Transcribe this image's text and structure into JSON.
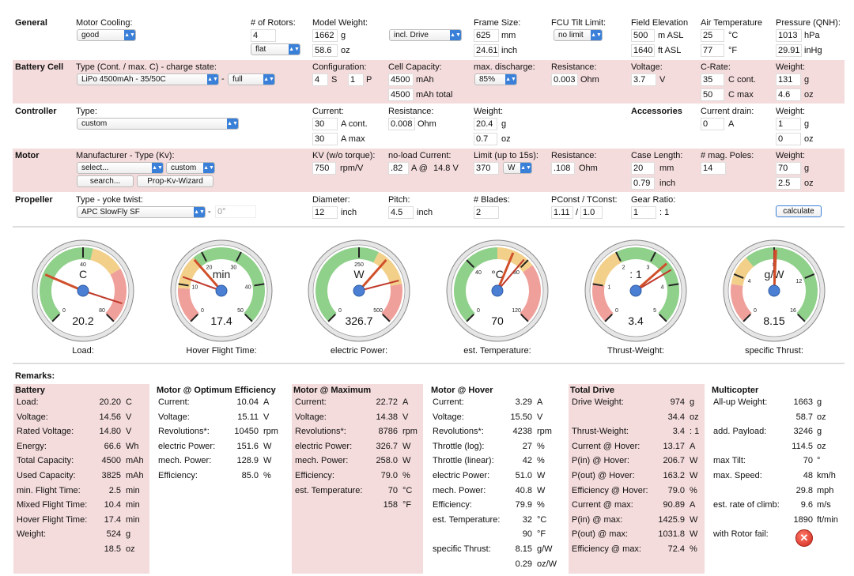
{
  "general": {
    "section": "General",
    "motor_cooling_label": "Motor Cooling:",
    "motor_cooling": "good",
    "rotors_label": "# of Rotors:",
    "rotors": "4",
    "rotor_layout": "flat",
    "model_weight_label": "Model Weight:",
    "model_weight_g": "1662",
    "model_weight_oz": "58.6",
    "unit_g": "g",
    "unit_oz": "oz",
    "weight_mode": "incl. Drive",
    "frame_size_label": "Frame Size:",
    "frame_mm": "625",
    "frame_inch": "24.61",
    "unit_mm": "mm",
    "unit_inch": "inch",
    "fcu_label": "FCU Tilt Limit:",
    "fcu": "no limit",
    "elev_label": "Field Elevation",
    "elev_m": "500",
    "elev_ft": "1640",
    "unit_masl": "m ASL",
    "unit_ftasl": "ft ASL",
    "air_temp_label": "Air Temperature",
    "air_c": "25",
    "air_f": "77",
    "unit_c": "°C",
    "unit_f": "°F",
    "pressure_label": "Pressure (QNH):",
    "p_hpa": "1013",
    "p_inhg": "29.91",
    "unit_hpa": "hPa",
    "unit_inhg": "inHg"
  },
  "battery": {
    "section": "Battery Cell",
    "type_label": "Type (Cont. / max. C) - charge state:",
    "type": "LiPo 4500mAh - 35/50C",
    "dash": "-",
    "charge": "full",
    "config_label": "Configuration:",
    "cells_s": "4",
    "s": "S",
    "cells_p": "1",
    "p": "P",
    "capacity_label": "Cell Capacity:",
    "cap": "4500",
    "cap_total": "4500",
    "unit_mah": "mAh",
    "unit_mah_total": "mAh total",
    "discharge_label": "max. discharge:",
    "discharge": "85%",
    "res_label": "Resistance:",
    "res": "0.003",
    "unit_ohm": "Ohm",
    "voltage_label": "Voltage:",
    "voltage": "3.7",
    "unit_v": "V",
    "crate_label": "C-Rate:",
    "c_cont": "35",
    "c_max": "50",
    "unit_ccont": "C cont.",
    "unit_cmax": "C max",
    "weight_label": "Weight:",
    "w_g": "131",
    "w_oz": "4.6"
  },
  "controller": {
    "section": "Controller",
    "type_label": "Type:",
    "type": "custom",
    "current_label": "Current:",
    "i_cont": "30",
    "i_max": "30",
    "unit_acont": "A cont.",
    "unit_amax": "A max",
    "res_label": "Resistance:",
    "res": "0.008",
    "unit_ohm": "Ohm",
    "weight_label": "Weight:",
    "w_g": "20.4",
    "w_oz": "0.7",
    "acc_section": "Accessories",
    "drain_label": "Current drain:",
    "drain": "0",
    "unit_a": "A",
    "acc_weight_label": "Weight:",
    "acc_w_g": "1",
    "acc_w_oz": "0"
  },
  "motor": {
    "section": "Motor",
    "mfr_label": "Manufacturer - Type (Kv):",
    "mfr": "select...",
    "type": "custom",
    "search_btn": "search...",
    "wizard_btn": "Prop-Kv-Wizard",
    "kv_label": "KV (w/o torque):",
    "kv": "750",
    "unit_kv": "rpm/V",
    "noload_label": "no-load Current:",
    "i0": ".82",
    "unit_a_at": "A @",
    "v0": "14.8 V",
    "limit_label": "Limit (up to 15s):",
    "limit": "370",
    "limit_unit": "W",
    "res_label": "Resistance:",
    "res": ".108",
    "unit_ohm": "Ohm",
    "case_label": "Case Length:",
    "case_mm": "20",
    "case_inch": "0.79",
    "poles_label": "# mag. Poles:",
    "poles": "14",
    "weight_label": "Weight:",
    "w_g": "70",
    "w_oz": "2.5"
  },
  "propeller": {
    "section": "Propeller",
    "type_label": "Type - yoke twist:",
    "type": "APC SlowFly SF",
    "dash": "-",
    "twist": "0°",
    "dia_label": "Diameter:",
    "dia": "12",
    "unit_inch": "inch",
    "pitch_label": "Pitch:",
    "pitch": "4.5",
    "blades_label": "# Blades:",
    "blades": "2",
    "pconst_label": "PConst / TConst:",
    "pconst": "1.11",
    "slash": "/",
    "tconst": "1.0",
    "gear_label": "Gear Ratio:",
    "gear": "1",
    "gear_unit": ": 1",
    "calc_btn": "calculate"
  },
  "gauges": [
    {
      "name": "load",
      "unit": "C",
      "value": "20.2",
      "label": "Load:",
      "ticks": [
        "0",
        "40",
        "80"
      ],
      "min": 0,
      "max": 80,
      "v": 20.2,
      "needle2": 72
    },
    {
      "name": "hover-time",
      "unit": "min",
      "value": "17.4",
      "label": "Hover Flight Time:",
      "ticks": [
        "0",
        "10",
        "20",
        "30",
        "40",
        "50"
      ],
      "min": 0,
      "max": 50,
      "v": 17.4,
      "needle2": 12
    },
    {
      "name": "power",
      "unit": "W",
      "value": "326.7",
      "label": "electric Power:",
      "ticks": [
        "0",
        "250",
        "500"
      ],
      "min": 0,
      "max": 500,
      "v": 326.7,
      "needle2": 390
    },
    {
      "name": "temp",
      "unit": "°C",
      "value": "70",
      "label": "est. Temperature:",
      "ticks": [
        "0",
        "40",
        "80",
        "120"
      ],
      "min": 0,
      "max": 120,
      "v": 70,
      "needle2": 78
    },
    {
      "name": "thrust-weight",
      "unit": ": 1",
      "value": "3.4",
      "label": "Thrust-Weight:",
      "ticks": [
        "0",
        "1",
        "2",
        "3",
        "4",
        "5"
      ],
      "min": 0,
      "max": 5,
      "v": 3.4,
      "needle2": 3.6
    },
    {
      "name": "specific-thrust",
      "unit": "g/W",
      "value": "8.15",
      "label": "specific Thrust:",
      "ticks": [
        "0",
        "4",
        "8",
        "12",
        "16"
      ],
      "min": 0,
      "max": 16,
      "v": 8.15,
      "needle2": 8.0
    }
  ],
  "remarks": {
    "title": "Remarks:",
    "battery": {
      "title": "Battery",
      "rows": [
        [
          "Load:",
          "20.20",
          "C"
        ],
        [
          "Voltage:",
          "14.56",
          "V"
        ],
        [
          "Rated Voltage:",
          "14.80",
          "V"
        ],
        [
          "Energy:",
          "66.6",
          "Wh"
        ],
        [
          "Total Capacity:",
          "4500",
          "mAh"
        ],
        [
          "Used Capacity:",
          "3825",
          "mAh"
        ],
        [
          "min. Flight Time:",
          "2.5",
          "min"
        ],
        [
          "Mixed Flight Time:",
          "10.4",
          "min"
        ],
        [
          "Hover Flight Time:",
          "17.4",
          "min"
        ],
        [
          "Weight:",
          "524",
          "g"
        ],
        [
          "",
          "18.5",
          "oz"
        ]
      ]
    },
    "opt": {
      "title": "Motor @ Optimum Efficiency",
      "rows": [
        [
          "Current:",
          "10.04",
          "A"
        ],
        [
          "Voltage:",
          "15.11",
          "V"
        ],
        [
          "Revolutions*:",
          "10450",
          "rpm"
        ],
        [
          "electric Power:",
          "151.6",
          "W"
        ],
        [
          "mech. Power:",
          "128.9",
          "W"
        ],
        [
          "Efficiency:",
          "85.0",
          "%"
        ]
      ]
    },
    "max": {
      "title": "Motor @ Maximum",
      "rows": [
        [
          "Current:",
          "22.72",
          "A"
        ],
        [
          "Voltage:",
          "14.38",
          "V"
        ],
        [
          "Revolutions*:",
          "8786",
          "rpm"
        ],
        [
          "electric Power:",
          "326.7",
          "W"
        ],
        [
          "mech. Power:",
          "258.0",
          "W"
        ],
        [
          "Efficiency:",
          "79.0",
          "%"
        ],
        [
          "est. Temperature:",
          "70",
          "°C"
        ],
        [
          "",
          "158",
          "°F"
        ]
      ]
    },
    "hover": {
      "title": "Motor @ Hover",
      "rows": [
        [
          "Current:",
          "3.29",
          "A"
        ],
        [
          "Voltage:",
          "15.50",
          "V"
        ],
        [
          "Revolutions*:",
          "4238",
          "rpm"
        ],
        [
          "Throttle (log):",
          "27",
          "%"
        ],
        [
          "Throttle (linear):",
          "42",
          "%"
        ],
        [
          "electric Power:",
          "51.0",
          "W"
        ],
        [
          "mech. Power:",
          "40.8",
          "W"
        ],
        [
          "Efficiency:",
          "79.9",
          "%"
        ],
        [
          "est. Temperature:",
          "32",
          "°C"
        ],
        [
          "",
          "90",
          "°F"
        ],
        [
          "specific Thrust:",
          "8.15",
          "g/W"
        ],
        [
          "",
          "0.29",
          "oz/W"
        ]
      ]
    },
    "total": {
      "title": "Total Drive",
      "rows": [
        [
          "Drive Weight:",
          "974",
          "g"
        ],
        [
          "",
          "34.4",
          "oz"
        ],
        [
          "Thrust-Weight:",
          "3.4",
          ": 1"
        ],
        [
          "Current @ Hover:",
          "13.17",
          "A"
        ],
        [
          "P(in) @ Hover:",
          "206.7",
          "W"
        ],
        [
          "P(out) @ Hover:",
          "163.2",
          "W"
        ],
        [
          "Efficiency @ Hover:",
          "79.0",
          "%"
        ],
        [
          "Current @ max:",
          "90.89",
          "A"
        ],
        [
          "P(in) @ max:",
          "1425.9",
          "W"
        ],
        [
          "P(out) @ max:",
          "1031.8",
          "W"
        ],
        [
          "Efficiency @ max:",
          "72.4",
          "%"
        ]
      ]
    },
    "multi": {
      "title": "Multicopter",
      "rows": [
        [
          "All-up Weight:",
          "1663",
          "g"
        ],
        [
          "",
          "58.7",
          "oz"
        ],
        [
          "add. Payload:",
          "3246",
          "g"
        ],
        [
          "",
          "114.5",
          "oz"
        ],
        [
          "max Tilt:",
          "70",
          "°"
        ],
        [
          "max. Speed:",
          "48",
          "km/h"
        ],
        [
          "",
          "29.8",
          "mph"
        ],
        [
          "est. rate of climb:",
          "9.6",
          "m/s"
        ],
        [
          "",
          "1890",
          "ft/min"
        ],
        [
          "with Rotor fail:",
          "",
          ""
        ]
      ]
    }
  }
}
